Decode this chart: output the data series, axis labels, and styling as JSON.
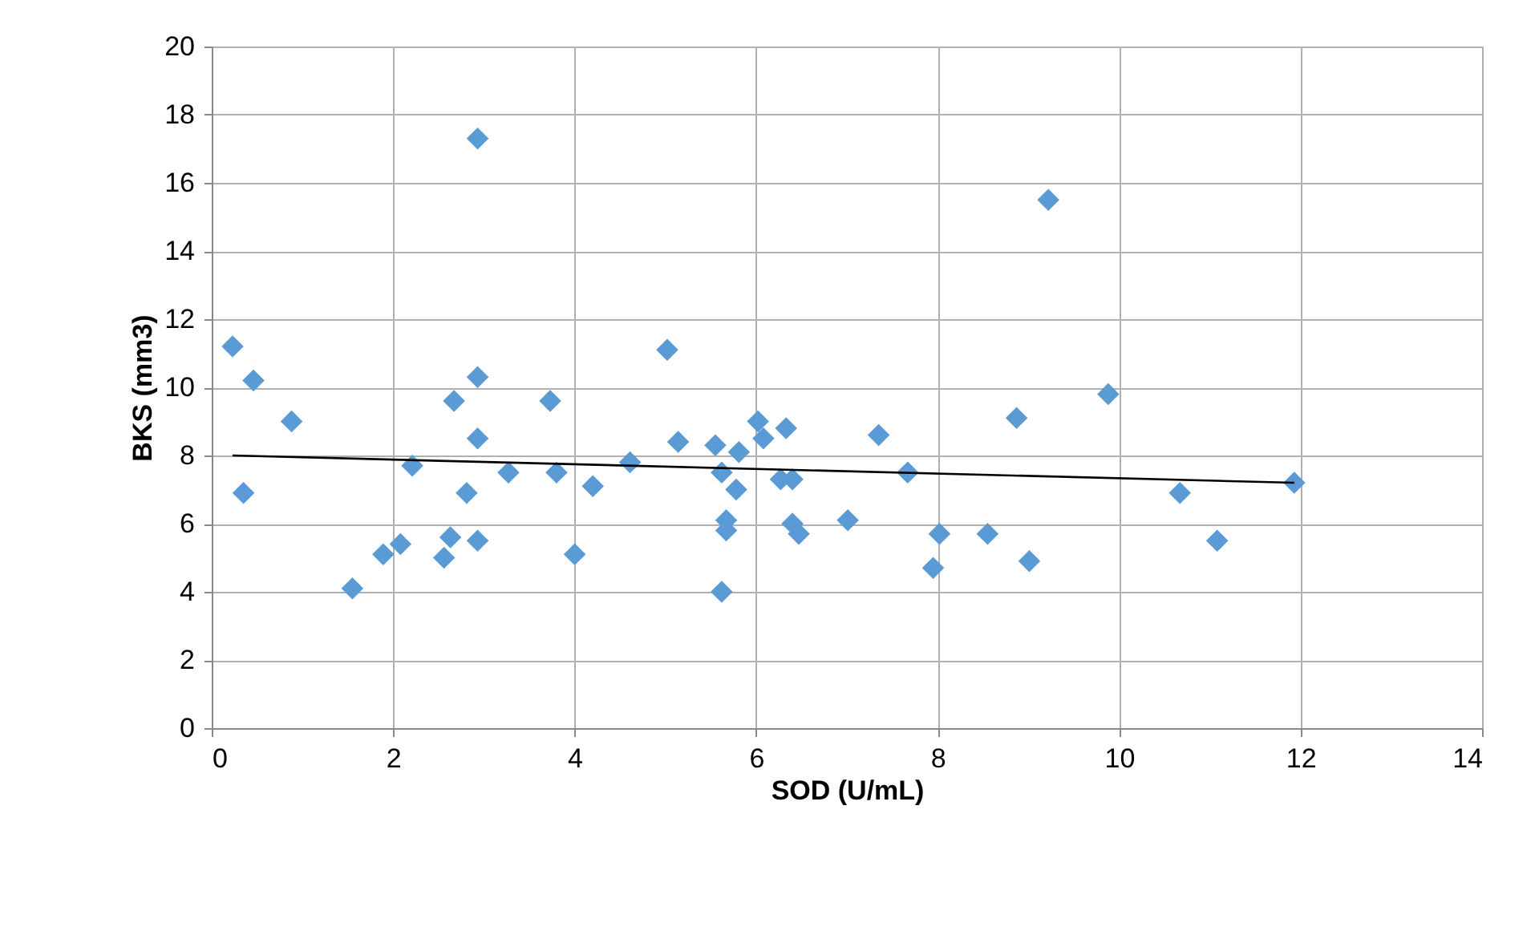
{
  "chart_data": {
    "type": "scatter",
    "xlabel": "SOD (U/mL)",
    "ylabel": "BKS (mm3)",
    "xlim": [
      0,
      14
    ],
    "xticks": [
      0,
      2,
      4,
      6,
      8,
      10,
      12,
      14
    ],
    "ylim": [
      0,
      20
    ],
    "yticks": [
      0,
      2,
      4,
      6,
      8,
      10,
      12,
      14,
      16,
      18,
      20
    ],
    "grid": true,
    "marker": "diamond",
    "series": [
      {
        "color": "#5b9bd5",
        "x": [
          0.23,
          0.46,
          0.35,
          0.88,
          1.55,
          1.89,
          2.08,
          2.21,
          2.56,
          2.63,
          2.67,
          2.81,
          2.93,
          2.93,
          2.93,
          2.93,
          3.27,
          3.73,
          3.8,
          4.0,
          4.2,
          4.61,
          5.02,
          5.14,
          5.55,
          5.62,
          5.62,
          5.67,
          5.67,
          5.78,
          5.81,
          6.02,
          6.08,
          6.27,
          6.33,
          6.4,
          6.4,
          6.47,
          7.01,
          7.35,
          7.67,
          7.95,
          8.02,
          8.55,
          8.87,
          9.01,
          9.22,
          9.88,
          10.67,
          11.08,
          11.93
        ],
        "values": [
          11.2,
          10.2,
          6.9,
          9.0,
          4.1,
          5.1,
          5.4,
          7.7,
          5.0,
          5.6,
          9.6,
          6.9,
          17.3,
          10.3,
          8.5,
          5.5,
          7.5,
          9.6,
          7.5,
          5.1,
          7.1,
          7.8,
          11.1,
          8.4,
          8.3,
          7.5,
          4.0,
          6.1,
          5.8,
          7.0,
          8.1,
          9.0,
          8.5,
          7.3,
          8.8,
          7.3,
          6.0,
          5.7,
          6.1,
          8.6,
          7.5,
          4.7,
          5.7,
          5.7,
          9.1,
          4.9,
          15.5,
          9.8,
          6.9,
          5.5,
          7.2
        ]
      },
      {
        "type": "line",
        "color": "#000000",
        "marker": "none",
        "line_style": "solid",
        "x": [
          0.23,
          11.93
        ],
        "values": [
          8.0,
          7.2
        ]
      }
    ]
  }
}
